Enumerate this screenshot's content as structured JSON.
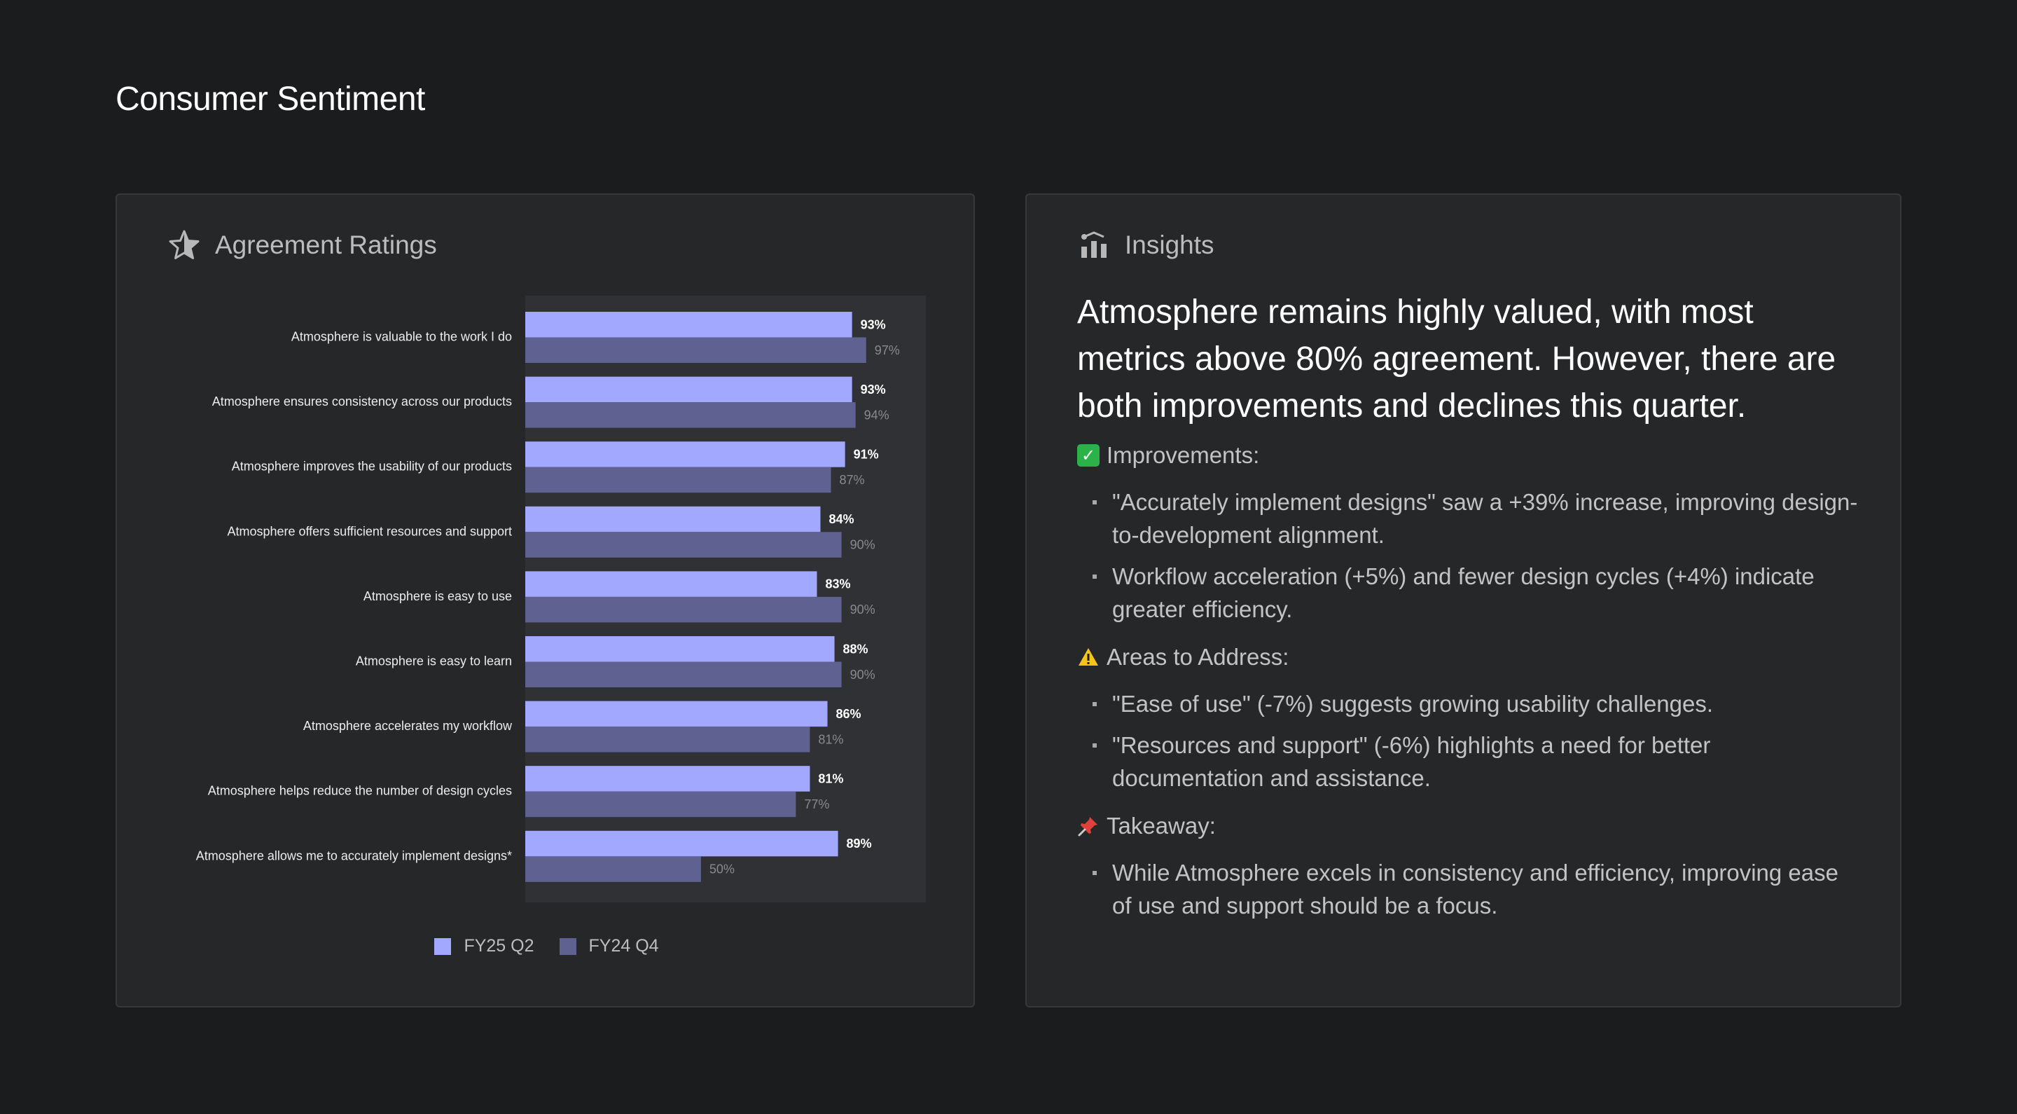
{
  "page_title": "Consumer Sentiment",
  "colors": {
    "accent_current": "#a3a8ff",
    "accent_previous": "#5f6190",
    "background": "#1b1c1e",
    "card": "#262729"
  },
  "left_card": {
    "title": "Agreement Ratings",
    "icon": "star-icon"
  },
  "chart_data": {
    "type": "bar",
    "orientation": "horizontal",
    "categories": [
      "Atmosphere is valuable to the work I do",
      "Atmosphere ensures consistency across our products",
      "Atmosphere improves the usability of  our products",
      "Atmosphere offers sufficient resources and support",
      "Atmosphere is easy to use",
      "Atmosphere is easy to learn",
      "Atmosphere accelerates my workflow",
      "Atmosphere helps reduce the number of design cycles",
      "Atmosphere allows me to accurately implement designs*"
    ],
    "series": [
      {
        "name": "FY25 Q2",
        "color": "#a3a8ff",
        "values": [
          93,
          93,
          91,
          84,
          83,
          88,
          86,
          81,
          89
        ],
        "labels": [
          "93%",
          "93%",
          "91%",
          "84%",
          "83%",
          "88%",
          "86%",
          "81%",
          "89%"
        ]
      },
      {
        "name": "FY24 Q4",
        "color": "#5f6190",
        "values": [
          97,
          94,
          87,
          90,
          90,
          90,
          81,
          77,
          50
        ],
        "labels": [
          "97%",
          "94%",
          "87%",
          "90%",
          "90%",
          "90%",
          "81%",
          "77%",
          "50%"
        ]
      }
    ],
    "xlim": [
      0,
      114
    ],
    "grid": false,
    "legend": "bottom-center"
  },
  "right_card": {
    "title": "Insights",
    "icon": "chart-icon",
    "headline": "Atmosphere remains highly valued, with most metrics above 80% agreement. However, there are both improvements and declines this quarter.",
    "sections": [
      {
        "icon": "check-icon",
        "title": "Improvements:",
        "bullets": [
          "\"Accurately implement designs\" saw a +39% increase, improving design-to-development alignment.",
          "Workflow acceleration (+5%) and fewer design cycles (+4%) indicate greater efficiency."
        ]
      },
      {
        "icon": "warning-icon",
        "title": "Areas to Address:",
        "bullets": [
          "\"Ease of use\" (-7%) suggests growing usability challenges.",
          "\"Resources and support\" (-6%) highlights a need for better documentation and assistance."
        ]
      },
      {
        "icon": "pin-icon",
        "title": "Takeaway:",
        "bullets": [
          "While Atmosphere excels in consistency and efficiency, improving ease of use and support should be a focus."
        ]
      }
    ]
  }
}
